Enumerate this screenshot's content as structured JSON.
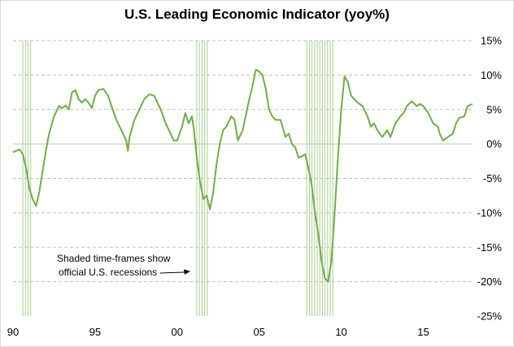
{
  "chart_data": {
    "type": "line",
    "title": "U.S. Leading Economic Indicator (yoy%)",
    "xlabel": "",
    "ylabel": "",
    "xlim": [
      1990.0,
      2018.0
    ],
    "ylim": [
      -25,
      15
    ],
    "y_ticks": [
      15,
      10,
      5,
      0,
      -5,
      -10,
      -15,
      -20,
      -25
    ],
    "y_tick_labels": [
      "15%",
      "10%",
      "5%",
      "0%",
      "-5%",
      "-10%",
      "-15%",
      "-20%",
      "-25%"
    ],
    "x_ticks": [
      1990,
      1995,
      2000,
      2005,
      2010,
      2015
    ],
    "x_tick_labels": [
      "90",
      "95",
      "00",
      "05",
      "10",
      "15"
    ],
    "grid": "horizontal dashed",
    "line_color": "#70ad47",
    "shade_color": "#a9d18e",
    "recessions": [
      [
        1990.6,
        1991.2
      ],
      [
        2001.2,
        2001.9
      ],
      [
        2007.9,
        2009.5
      ]
    ],
    "annotation": {
      "lines": [
        "Shaded time-frames show",
        "official U.S. recessions"
      ],
      "arrow_to": [
        2001.2,
        -18.5
      ]
    },
    "series": [
      {
        "points": [
          [
            1990.0,
            -1.2
          ],
          [
            1990.2,
            -1.0
          ],
          [
            1990.4,
            -0.8
          ],
          [
            1990.6,
            -1.5
          ],
          [
            1990.8,
            -3.5
          ],
          [
            1991.0,
            -6.5
          ],
          [
            1991.2,
            -8.0
          ],
          [
            1991.4,
            -9.0
          ],
          [
            1991.6,
            -7.0
          ],
          [
            1991.8,
            -4.0
          ],
          [
            1992.0,
            -1.0
          ],
          [
            1992.2,
            1.5
          ],
          [
            1992.5,
            4.0
          ],
          [
            1992.8,
            5.5
          ],
          [
            1993.0,
            5.2
          ],
          [
            1993.2,
            5.6
          ],
          [
            1993.4,
            5.0
          ],
          [
            1993.6,
            7.5
          ],
          [
            1993.8,
            7.8
          ],
          [
            1994.0,
            6.5
          ],
          [
            1994.2,
            6.0
          ],
          [
            1994.4,
            6.5
          ],
          [
            1994.6,
            6.0
          ],
          [
            1994.8,
            5.2
          ],
          [
            1995.0,
            7.0
          ],
          [
            1995.2,
            7.8
          ],
          [
            1995.5,
            8.0
          ],
          [
            1995.8,
            7.0
          ],
          [
            1996.0,
            5.5
          ],
          [
            1996.3,
            3.5
          ],
          [
            1996.6,
            2.0
          ],
          [
            1996.9,
            0.5
          ],
          [
            1997.0,
            -1.0
          ],
          [
            1997.1,
            1.0
          ],
          [
            1997.4,
            3.5
          ],
          [
            1997.7,
            5.0
          ],
          [
            1998.0,
            6.5
          ],
          [
            1998.3,
            7.2
          ],
          [
            1998.6,
            7.0
          ],
          [
            1998.8,
            6.0
          ],
          [
            1999.0,
            5.0
          ],
          [
            1999.3,
            3.0
          ],
          [
            1999.6,
            1.5
          ],
          [
            1999.8,
            0.5
          ],
          [
            2000.0,
            0.5
          ],
          [
            2000.3,
            2.5
          ],
          [
            2000.5,
            4.5
          ],
          [
            2000.7,
            3.0
          ],
          [
            2000.9,
            4.0
          ],
          [
            2001.0,
            2.5
          ],
          [
            2001.2,
            -2.0
          ],
          [
            2001.4,
            -5.5
          ],
          [
            2001.6,
            -8.0
          ],
          [
            2001.8,
            -7.5
          ],
          [
            2002.0,
            -9.5
          ],
          [
            2002.2,
            -7.0
          ],
          [
            2002.4,
            -3.0
          ],
          [
            2002.6,
            0.0
          ],
          [
            2002.8,
            2.0
          ],
          [
            2003.0,
            2.5
          ],
          [
            2003.3,
            4.0
          ],
          [
            2003.5,
            3.5
          ],
          [
            2003.7,
            0.5
          ],
          [
            2004.0,
            2.0
          ],
          [
            2004.3,
            5.5
          ],
          [
            2004.6,
            8.5
          ],
          [
            2004.8,
            10.8
          ],
          [
            2005.0,
            10.5
          ],
          [
            2005.2,
            10.0
          ],
          [
            2005.4,
            8.0
          ],
          [
            2005.6,
            5.0
          ],
          [
            2005.8,
            4.0
          ],
          [
            2006.0,
            3.5
          ],
          [
            2006.3,
            3.5
          ],
          [
            2006.6,
            1.0
          ],
          [
            2006.8,
            1.5
          ],
          [
            2007.0,
            0.0
          ],
          [
            2007.2,
            -0.5
          ],
          [
            2007.4,
            -2.0
          ],
          [
            2007.6,
            -1.8
          ],
          [
            2007.8,
            -1.5
          ],
          [
            2008.0,
            -3.5
          ],
          [
            2008.2,
            -6.0
          ],
          [
            2008.4,
            -10.0
          ],
          [
            2008.6,
            -13.0
          ],
          [
            2008.8,
            -17.0
          ],
          [
            2009.0,
            -19.5
          ],
          [
            2009.2,
            -20.0
          ],
          [
            2009.4,
            -17.0
          ],
          [
            2009.6,
            -10.0
          ],
          [
            2009.8,
            -2.0
          ],
          [
            2010.0,
            5.0
          ],
          [
            2010.2,
            9.8
          ],
          [
            2010.4,
            9.0
          ],
          [
            2010.6,
            7.0
          ],
          [
            2010.8,
            6.5
          ],
          [
            2011.0,
            6.0
          ],
          [
            2011.3,
            5.5
          ],
          [
            2011.6,
            4.0
          ],
          [
            2011.8,
            2.5
          ],
          [
            2012.0,
            3.0
          ],
          [
            2012.2,
            2.0
          ],
          [
            2012.5,
            1.0
          ],
          [
            2012.8,
            2.0
          ],
          [
            2013.0,
            1.0
          ],
          [
            2013.3,
            3.0
          ],
          [
            2013.6,
            4.0
          ],
          [
            2013.8,
            4.5
          ],
          [
            2014.0,
            5.5
          ],
          [
            2014.3,
            6.2
          ],
          [
            2014.6,
            5.5
          ],
          [
            2014.8,
            5.8
          ],
          [
            2015.0,
            5.5
          ],
          [
            2015.3,
            4.5
          ],
          [
            2015.6,
            3.0
          ],
          [
            2015.9,
            2.5
          ],
          [
            2016.0,
            1.5
          ],
          [
            2016.2,
            0.5
          ],
          [
            2016.5,
            1.0
          ],
          [
            2016.8,
            1.5
          ],
          [
            2017.0,
            3.0
          ],
          [
            2017.2,
            3.8
          ],
          [
            2017.5,
            4.0
          ],
          [
            2017.7,
            5.5
          ],
          [
            2018.0,
            5.8
          ]
        ]
      }
    ]
  }
}
